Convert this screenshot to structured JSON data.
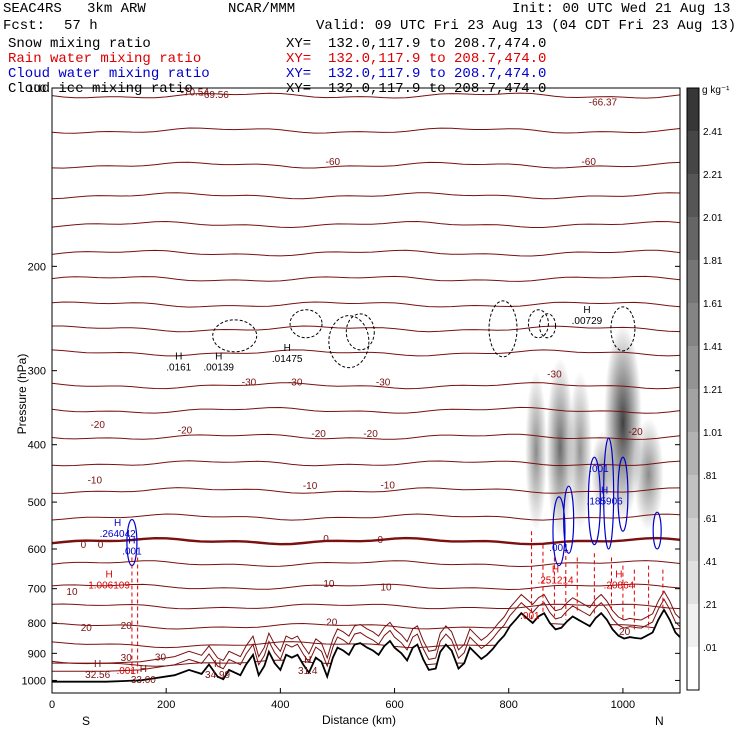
{
  "header": {
    "model": "SEAC4RS   3km ARW",
    "org": "NCAR/MMM",
    "init": "Init: 00 UTC Wed 21 Aug 13",
    "fcst_label": "Fcst:",
    "fcst_value": "57 h",
    "valid": "Valid: 09 UTC Fri 23 Aug 13 (04 CDT Fri 23 Aug 13)"
  },
  "legend": [
    {
      "name": "Snow mixing ratio",
      "xy": "XY=  132.0,117.9 to 208.7,474.0",
      "color": "#000000"
    },
    {
      "name": "Rain water mixing ratio",
      "xy": "XY=  132.0,117.9 to 208.7,474.0",
      "color": "#dd0000"
    },
    {
      "name": "Cloud water mixing ratio",
      "xy": "XY=  132.0,117.9 to 208.7,474.0",
      "color": "#0000cc"
    },
    {
      "name": "Cloud ice mixing ratio",
      "xy": "XY=  132.0,117.9 to 208.7,474.0",
      "color": "#000000"
    }
  ],
  "colors": {
    "temperature_contour": "#7a1010",
    "rain": "#dd0000",
    "cloud_water": "#0000cc",
    "snow": "#000000",
    "terrain": "#000000"
  },
  "chart_data": {
    "type": "cross-section",
    "xlabel": "Distance (km)",
    "ylabel": "Pressure (hPa)",
    "xlim": [
      0,
      1100
    ],
    "ylim": [
      1050,
      100
    ],
    "y_scale": "log",
    "x_ticks": [
      "0",
      "200",
      "400",
      "600",
      "800",
      "1000"
    ],
    "y_ticks": [
      "100",
      "200",
      "300",
      "400",
      "500",
      "600",
      "700",
      "800",
      "900",
      "1000"
    ],
    "x_tick_values": [
      0,
      200,
      400,
      600,
      800,
      1000
    ],
    "y_tick_values": [
      100,
      200,
      300,
      400,
      500,
      600,
      700,
      800,
      900,
      1000
    ],
    "end_labels": {
      "left": "S",
      "right": "N"
    },
    "colorbar": {
      "unit": "g kg⁻¹",
      "labels": [
        ".01",
        ".21",
        ".41",
        ".61",
        ".81",
        "1.01",
        "1.21",
        "1.41",
        "1.61",
        "1.81",
        "2.01",
        "2.21",
        "2.41"
      ],
      "values": [
        0.01,
        0.21,
        0.41,
        0.61,
        0.81,
        1.01,
        1.21,
        1.41,
        1.61,
        1.81,
        2.01,
        2.21,
        2.41
      ]
    },
    "temperature_levels": [
      {
        "value": 0,
        "label": "-70.54",
        "p": 103
      },
      {
        "value": 0,
        "label": "-69.56",
        "p": 104
      },
      {
        "value": 0,
        "label": "-66.37",
        "p": 107
      },
      {
        "value": -60,
        "label": "-60",
        "p": 135
      },
      {
        "value": -30,
        "label": "-30",
        "p": 318
      },
      {
        "value": -20,
        "label": "-20",
        "p": 388
      },
      {
        "value": -10,
        "label": "-10",
        "p": 478
      },
      {
        "value": 0,
        "label": "0",
        "p": 582
      },
      {
        "value": 10,
        "label": "10",
        "p": 695
      },
      {
        "value": 20,
        "label": "20",
        "p": 810
      },
      {
        "value": 30,
        "label": "30",
        "p": 935
      }
    ],
    "temperature_contour_pressures": [
      103,
      118,
      135,
      152,
      170,
      190,
      210,
      232,
      255,
      280,
      318,
      350,
      388,
      430,
      478,
      530,
      582,
      635,
      695,
      750,
      810,
      870,
      935
    ],
    "highs": [
      {
        "label": "H",
        "value": ".0161",
        "x": 222,
        "p": 300,
        "color": "#000000"
      },
      {
        "label": "H",
        "value": ".00139",
        "x": 292,
        "p": 300,
        "color": "#000000"
      },
      {
        "label": "H",
        "value": ".01475",
        "x": 412,
        "p": 290,
        "color": "#000000"
      },
      {
        "label": "H",
        "value": ".00729",
        "x": 937,
        "p": 250,
        "color": "#000000"
      },
      {
        "label": "H",
        "value": ".264042",
        "x": 115,
        "p": 573,
        "color": "#0000cc"
      },
      {
        "label": "H",
        "value": ".001",
        "x": 140,
        "p": 613,
        "color": "#0000cc"
      },
      {
        "label": "",
        "value": ".001",
        "x": 958,
        "p": 445,
        "color": "#0000cc"
      },
      {
        "label": "H",
        "value": ".185906",
        "x": 968,
        "p": 505,
        "color": "#0000cc"
      },
      {
        "label": "",
        "value": ".001",
        "x": 888,
        "p": 605,
        "color": "#0000cc"
      },
      {
        "label": "H",
        "value": "1.006109",
        "x": 100,
        "p": 700,
        "color": "#dd0000"
      },
      {
        "label": "H",
        "value": ".251214",
        "x": 882,
        "p": 686,
        "color": "#dd0000"
      },
      {
        "label": "H",
        "value": ".20864",
        "x": 993,
        "p": 700,
        "color": "#dd0000"
      },
      {
        "label": "",
        "value": ".001",
        "x": 837,
        "p": 788,
        "color": "#dd0000"
      },
      {
        "label": "",
        "value": ".001",
        "x": 130,
        "p": 975,
        "color": "#dd0000"
      },
      {
        "label": "H",
        "value": "32.56",
        "x": 80,
        "p": 990,
        "color": "#7a1010"
      },
      {
        "label": "H",
        "value": "33.00",
        "x": 160,
        "p": 1010,
        "color": "#7a1010"
      },
      {
        "label": "H",
        "value": "34.99",
        "x": 290,
        "p": 990,
        "color": "#7a1010"
      },
      {
        "label": "H",
        "value": "31.4",
        "x": 448,
        "p": 975,
        "color": "#7a1010"
      }
    ],
    "contour_labels": [
      {
        "text": "-60",
        "x": 492,
        "p": 135
      },
      {
        "text": "-60",
        "x": 940,
        "p": 135
      },
      {
        "text": "-30",
        "x": 345,
        "p": 318
      },
      {
        "text": "-30",
        "x": 426,
        "p": 318
      },
      {
        "text": "-30",
        "x": 580,
        "p": 318
      },
      {
        "text": "-30",
        "x": 880,
        "p": 308
      },
      {
        "text": "-20",
        "x": 80,
        "p": 375
      },
      {
        "text": "-20",
        "x": 233,
        "p": 383
      },
      {
        "text": "-20",
        "x": 467,
        "p": 388
      },
      {
        "text": "-20",
        "x": 558,
        "p": 388
      },
      {
        "text": "-20",
        "x": 1022,
        "p": 385
      },
      {
        "text": "-10",
        "x": 75,
        "p": 465
      },
      {
        "text": "-10",
        "x": 452,
        "p": 475
      },
      {
        "text": "-10",
        "x": 588,
        "p": 474
      },
      {
        "text": "0",
        "x": 55,
        "p": 598
      },
      {
        "text": "0",
        "x": 85,
        "p": 598
      },
      {
        "text": "0",
        "x": 480,
        "p": 584
      },
      {
        "text": "0",
        "x": 575,
        "p": 586
      },
      {
        "text": "10",
        "x": 35,
        "p": 718
      },
      {
        "text": "10",
        "x": 485,
        "p": 695
      },
      {
        "text": "10",
        "x": 585,
        "p": 705
      },
      {
        "text": "20",
        "x": 60,
        "p": 825
      },
      {
        "text": "20",
        "x": 130,
        "p": 818
      },
      {
        "text": "20",
        "x": 490,
        "p": 808
      },
      {
        "text": "20",
        "x": 1003,
        "p": 838
      },
      {
        "text": "30",
        "x": 130,
        "p": 928
      },
      {
        "text": "30",
        "x": 190,
        "p": 926
      }
    ],
    "terrain": {
      "x": [
        0,
        95,
        155,
        215,
        240,
        262,
        275,
        290,
        300,
        310,
        330,
        340,
        352,
        362,
        372,
        380,
        390,
        400,
        410,
        420,
        430,
        440,
        450,
        462,
        472,
        482,
        492,
        500,
        510,
        520,
        530,
        540,
        552,
        562,
        572,
        582,
        592,
        600,
        612,
        622,
        632,
        640,
        650,
        660,
        672,
        680,
        690,
        700,
        712,
        722,
        732,
        742,
        752,
        762,
        772,
        782,
        792,
        802,
        812,
        822,
        832,
        842,
        852,
        862,
        872,
        882,
        892,
        902,
        912,
        922,
        932,
        942,
        952,
        962,
        972,
        982,
        992,
        1002,
        1012,
        1022,
        1032,
        1042,
        1052,
        1062,
        1072,
        1082,
        1092,
        1100
      ],
      "p": [
        1005,
        1005,
        1000,
        980,
        960,
        975,
        940,
        985,
        995,
        960,
        980,
        940,
        905,
        980,
        945,
        895,
        935,
        960,
        905,
        915,
        905,
        940,
        970,
        915,
        930,
        985,
        915,
        880,
        890,
        905,
        870,
        865,
        880,
        890,
        905,
        875,
        858,
        880,
        900,
        925,
        880,
        870,
        920,
        960,
        955,
        895,
        870,
        890,
        955,
        935,
        880,
        900,
        920,
        905,
        885,
        860,
        840,
        810,
        790,
        770,
        785,
        800,
        780,
        770,
        800,
        820,
        815,
        795,
        780,
        790,
        800,
        810,
        785,
        770,
        790,
        820,
        840,
        850,
        845,
        848,
        850,
        840,
        830,
        790,
        760,
        790,
        830,
        845
      ]
    },
    "hydrometeor_shading": [
      {
        "x": 848,
        "p_top": 300,
        "p_bottom": 560,
        "w": 14,
        "max": 1.1
      },
      {
        "x": 890,
        "p_top": 285,
        "p_bottom": 575,
        "w": 20,
        "max": 1.5
      },
      {
        "x": 925,
        "p_top": 300,
        "p_bottom": 560,
        "w": 16,
        "max": 1.0
      },
      {
        "x": 965,
        "p_top": 380,
        "p_bottom": 520,
        "w": 16,
        "max": 0.9
      },
      {
        "x": 1000,
        "p_top": 250,
        "p_bottom": 540,
        "w": 30,
        "max": 2.4
      },
      {
        "x": 1045,
        "p_top": 360,
        "p_bottom": 560,
        "w": 22,
        "max": 1.1
      }
    ]
  }
}
